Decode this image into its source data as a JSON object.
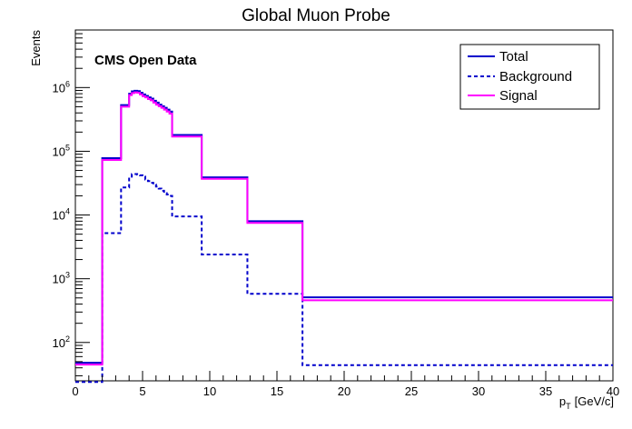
{
  "chart_data": {
    "type": "step",
    "title": "Global Muon Probe",
    "annotation": "CMS Open Data",
    "ylabel": "Events",
    "xlabel_main": "p",
    "xlabel_sub": "T",
    "xlabel_unit": "[GeV/c]",
    "xlim": [
      0,
      40
    ],
    "ylim": [
      25,
      8000000
    ],
    "yscale": "log",
    "grid": false,
    "legend_position": "top-right",
    "x_ticks": [
      0,
      5,
      10,
      15,
      20,
      25,
      30,
      35,
      40
    ],
    "x_tick_labels": [
      "0",
      "5",
      "10",
      "15",
      "20",
      "25",
      "30",
      "35",
      "40"
    ],
    "y_ticks": [
      100,
      1000,
      10000,
      100000,
      1000000
    ],
    "y_tick_bases": [
      "10",
      "10",
      "10",
      "10",
      "10"
    ],
    "y_tick_exps": [
      "2",
      "3",
      "4",
      "5",
      "6"
    ],
    "series": [
      {
        "name": "Total",
        "color": "#0000cc",
        "dash": "",
        "width": 2,
        "edges": [
          0,
          2,
          3.4,
          4,
          4.2,
          4.4,
          4.6,
          4.8,
          5,
          5.2,
          5.4,
          5.6,
          5.8,
          6,
          6.2,
          6.4,
          6.6,
          6.8,
          7,
          7.2,
          9.4,
          12.8,
          16.9,
          40
        ],
        "values": [
          48,
          78000,
          530000,
          800000,
          870000,
          890000,
          880000,
          830000,
          780000,
          740000,
          700000,
          670000,
          620000,
          580000,
          540000,
          510000,
          480000,
          450000,
          420000,
          180000,
          39000,
          8000,
          510
        ]
      },
      {
        "name": "Background",
        "color": "#0000cc",
        "dash": "4,3",
        "width": 2,
        "edges": [
          0,
          1.2,
          2,
          3.4,
          4,
          4.2,
          4.4,
          4.6,
          4.8,
          5,
          5.2,
          5.4,
          5.6,
          5.8,
          6,
          6.2,
          6.4,
          6.6,
          6.8,
          7,
          7.2,
          9.4,
          12.8,
          16.9,
          40
        ],
        "values": [
          24,
          24,
          5200,
          27000,
          40000,
          44000,
          44000,
          43000,
          42000,
          40000,
          36000,
          34000,
          32000,
          30000,
          28000,
          26000,
          24000,
          22000,
          21000,
          20000,
          9500,
          2400,
          580,
          44
        ]
      },
      {
        "name": "Signal",
        "color": "#ff00ff",
        "dash": "",
        "width": 2,
        "edges": [
          0,
          2,
          3.4,
          4,
          4.2,
          4.4,
          4.6,
          4.8,
          5,
          5.2,
          5.4,
          5.6,
          5.8,
          6,
          6.2,
          6.4,
          6.6,
          6.8,
          7,
          7.2,
          9.4,
          12.8,
          16.9,
          40
        ],
        "values": [
          45,
          73000,
          500000,
          760000,
          820000,
          840000,
          830000,
          780000,
          730000,
          700000,
          660000,
          630000,
          580000,
          540000,
          510000,
          480000,
          450000,
          420000,
          390000,
          170000,
          37000,
          7500,
          460
        ]
      }
    ]
  }
}
